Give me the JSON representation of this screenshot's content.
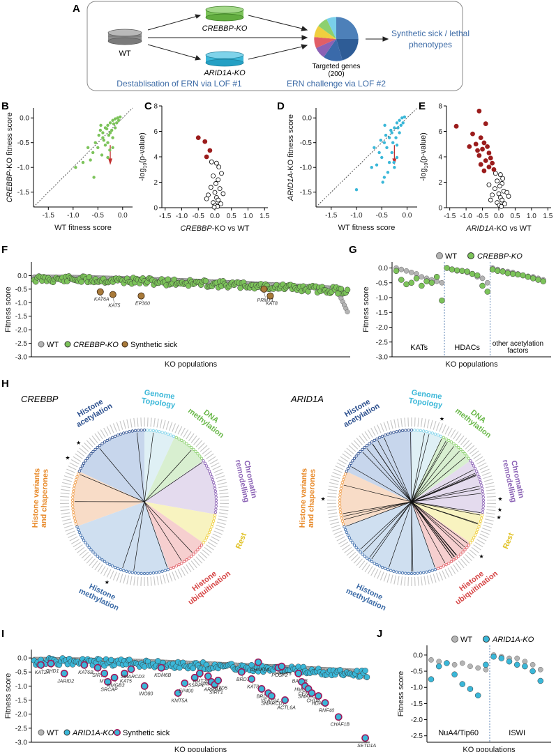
{
  "colors": {
    "crebbp_green": "#7cc35a",
    "arid1a_cyan": "#3ab7d8",
    "significant_red": "#9b1c1c",
    "wt_grey": "#b4b4b4",
    "synthetic_sick": "#a87a3a",
    "label_blue": "#3b6aa6"
  },
  "panelA": {
    "letter": "A",
    "wt": "WT",
    "crebbp_ko": "CREBBP-KO",
    "arid1a_ko": "ARID1A-KO",
    "targeted_genes": "Targeted genes",
    "targeted_count": "(200)",
    "outcome": "Synthetic sick / lethal phenotypes",
    "lof1": "Destablisation of ERN via LOF #1",
    "lof2": "ERN challenge via LOF #2"
  },
  "chart_data": [
    {
      "panel": "B",
      "type": "scatter",
      "xlabel": "WT fitness score",
      "ylabel": "CREBBP-KO fitness score",
      "xlim": [
        -1.8,
        0.2
      ],
      "ylim": [
        -1.8,
        0.2
      ],
      "xticks": [
        "-1.5",
        "-1.0",
        "-0.5",
        "0.0"
      ],
      "yticks": [
        "0.0",
        "-0.5",
        "-1.0",
        "-1.5"
      ],
      "points": [
        [
          -0.25,
          -0.1
        ],
        [
          -0.2,
          -0.05
        ],
        [
          -0.3,
          -0.15
        ],
        [
          -0.15,
          -0.02
        ],
        [
          -0.35,
          -0.2
        ],
        [
          -0.4,
          -0.3
        ],
        [
          -0.45,
          -0.25
        ],
        [
          -0.1,
          0.0
        ],
        [
          -0.05,
          0.02
        ],
        [
          -0.25,
          -0.3
        ],
        [
          -0.3,
          -0.5
        ],
        [
          -0.5,
          -0.6
        ],
        [
          -0.6,
          -0.7
        ],
        [
          -0.3,
          -0.8
        ],
        [
          -0.2,
          -0.4
        ],
        [
          -0.35,
          -0.55
        ],
        [
          -0.42,
          -0.75
        ],
        [
          -0.55,
          -0.5
        ],
        [
          -0.15,
          -0.2
        ],
        [
          -0.22,
          -0.25
        ],
        [
          -0.28,
          -0.35
        ],
        [
          -0.95,
          -1.0
        ],
        [
          -0.8,
          -0.9
        ],
        [
          -0.65,
          -0.85
        ],
        [
          -0.4,
          -0.4
        ],
        [
          -0.12,
          -0.1
        ],
        [
          -0.18,
          -0.12
        ],
        [
          -0.32,
          -0.22
        ],
        [
          -0.38,
          -0.45
        ],
        [
          -0.48,
          -0.35
        ],
        [
          -0.58,
          -1.2
        ],
        [
          -0.2,
          -0.6
        ],
        [
          -0.26,
          -0.65
        ],
        [
          -0.7,
          -0.6
        ],
        [
          -0.08,
          -0.05
        ],
        [
          -0.44,
          -0.15
        ]
      ]
    },
    {
      "panel": "C",
      "type": "scatter",
      "xlabel": "CREBBP-KO vs WT",
      "ylabel": "-log10(p-value)",
      "xlim": [
        -1.6,
        1.6
      ],
      "ylim": [
        0,
        8
      ],
      "xticks": [
        "-1.5",
        "-1.0",
        "-0.5",
        "0.0",
        "0.5",
        "1.0",
        "1.5"
      ],
      "yticks": [
        "0",
        "2",
        "4",
        "6",
        "8"
      ],
      "significant": [
        [
          -0.5,
          5.5
        ],
        [
          -0.3,
          5.2
        ],
        [
          -0.15,
          4.5
        ],
        [
          -0.25,
          4.0
        ]
      ],
      "nonsignificant": [
        [
          -0.1,
          3.6
        ],
        [
          0.05,
          3.5
        ],
        [
          0.12,
          3.2
        ],
        [
          0.2,
          2.7
        ],
        [
          -0.05,
          2.5
        ],
        [
          0.1,
          2.2
        ],
        [
          0.03,
          1.9
        ],
        [
          -0.12,
          1.6
        ],
        [
          0.15,
          1.5
        ],
        [
          0.0,
          1.2
        ],
        [
          -0.2,
          1.0
        ],
        [
          0.05,
          0.8
        ],
        [
          0.1,
          0.6
        ],
        [
          -0.05,
          0.4
        ],
        [
          0.02,
          0.2
        ],
        [
          0.08,
          0.1
        ],
        [
          -0.02,
          0.05
        ],
        [
          0.25,
          1.1
        ],
        [
          -0.25,
          0.7
        ],
        [
          0.18,
          0.3
        ]
      ]
    },
    {
      "panel": "D",
      "type": "scatter",
      "xlabel": "WT fitness score",
      "ylabel": "ARID1A-KO fitness score",
      "xlim": [
        -1.8,
        0.2
      ],
      "ylim": [
        -1.8,
        0.2
      ],
      "xticks": [
        "-1.5",
        "-1.0",
        "-0.5",
        "0.0"
      ],
      "yticks": [
        "0.0",
        "-0.5",
        "-1.0",
        "-1.5"
      ],
      "points": [
        [
          -0.2,
          -0.1
        ],
        [
          -0.25,
          -0.2
        ],
        [
          -0.3,
          -0.3
        ],
        [
          -0.15,
          -0.05
        ],
        [
          -0.35,
          -0.4
        ],
        [
          -0.4,
          -0.6
        ],
        [
          -0.45,
          -0.5
        ],
        [
          -0.1,
          0.0
        ],
        [
          -0.05,
          0.02
        ],
        [
          -0.3,
          -0.7
        ],
        [
          -0.35,
          -0.9
        ],
        [
          -0.5,
          -0.8
        ],
        [
          -0.6,
          -0.95
        ],
        [
          -0.25,
          -1.0
        ],
        [
          -0.2,
          -0.55
        ],
        [
          -0.38,
          -1.1
        ],
        [
          -0.45,
          -1.2
        ],
        [
          -0.55,
          -0.7
        ],
        [
          -0.15,
          -0.3
        ],
        [
          -0.22,
          -0.4
        ],
        [
          -0.28,
          -0.5
        ],
        [
          -1.0,
          -1.45
        ],
        [
          -0.7,
          -1.0
        ],
        [
          -0.65,
          -0.6
        ],
        [
          -0.42,
          -0.35
        ],
        [
          -0.12,
          -0.15
        ],
        [
          -0.18,
          -0.2
        ],
        [
          -0.32,
          -0.25
        ],
        [
          -0.48,
          -1.3
        ],
        [
          -0.52,
          -0.45
        ],
        [
          -0.2,
          -0.8
        ],
        [
          -0.26,
          -0.9
        ],
        [
          -0.08,
          -0.1
        ],
        [
          -0.44,
          -0.15
        ]
      ]
    },
    {
      "panel": "E",
      "type": "scatter",
      "xlabel": "ARID1A-KO vs WT",
      "ylabel": "-log10(p-value)",
      "xlim": [
        -1.6,
        1.6
      ],
      "ylim": [
        0,
        8
      ],
      "xticks": [
        "-1.5",
        "-1.0",
        "-0.5",
        "0.0",
        "0.5",
        "1.0",
        "1.5"
      ],
      "yticks": [
        "0",
        "2",
        "4",
        "6",
        "8"
      ],
      "significant": [
        [
          -1.3,
          6.4
        ],
        [
          -0.6,
          7.6
        ],
        [
          -0.4,
          6.6
        ],
        [
          -0.8,
          5.8
        ],
        [
          -0.55,
          5.5
        ],
        [
          -0.45,
          5.1
        ],
        [
          -0.7,
          5.0
        ],
        [
          -0.35,
          4.8
        ],
        [
          -0.5,
          4.6
        ],
        [
          -0.3,
          4.3
        ],
        [
          -0.6,
          4.1
        ],
        [
          -0.25,
          3.9
        ],
        [
          -0.4,
          3.7
        ],
        [
          -0.2,
          3.5
        ],
        [
          -0.55,
          3.4
        ],
        [
          -0.3,
          3.2
        ],
        [
          -0.15,
          3.0
        ],
        [
          -0.45,
          2.9
        ],
        [
          -0.65,
          4.5
        ],
        [
          -0.9,
          4.8
        ]
      ],
      "nonsignificant": [
        [
          -0.1,
          2.7
        ],
        [
          0.05,
          2.6
        ],
        [
          0.12,
          2.3
        ],
        [
          -0.05,
          2.1
        ],
        [
          0.1,
          1.9
        ],
        [
          0.03,
          1.7
        ],
        [
          -0.12,
          1.5
        ],
        [
          0.15,
          1.3
        ],
        [
          0.0,
          1.1
        ],
        [
          -0.2,
          1.0
        ],
        [
          0.05,
          0.8
        ],
        [
          0.1,
          0.6
        ],
        [
          -0.05,
          0.4
        ],
        [
          0.02,
          0.2
        ],
        [
          0.08,
          0.1
        ],
        [
          0.25,
          1.2
        ],
        [
          -0.25,
          0.6
        ],
        [
          0.18,
          0.3
        ],
        [
          0.3,
          0.9
        ],
        [
          -0.3,
          1.8
        ]
      ]
    },
    {
      "panel": "F",
      "type": "scatter",
      "xlabel": "KO populations",
      "ylabel": "Fitness score",
      "ylim": [
        -3.0,
        0.5
      ],
      "yticks": [
        "0.0",
        "-0.5",
        "-1.0",
        "-1.5",
        "-2.0",
        "-2.5",
        "-3.0"
      ],
      "legend": [
        "WT",
        "CREBBP-KO",
        "Synthetic sick"
      ],
      "n_points": 200,
      "synthetic_sick": [
        {
          "label": "KAT6A",
          "index": 42,
          "value": -0.6
        },
        {
          "label": "KAT5",
          "index": 50,
          "value": -0.7
        },
        {
          "label": "EP300",
          "index": 68,
          "value": -0.75
        },
        {
          "label": "PRMT1",
          "index": 146,
          "value": -0.5
        },
        {
          "label": "KAT8",
          "index": 150,
          "value": -0.75
        }
      ]
    },
    {
      "panel": "G",
      "type": "scatter",
      "xlabel": "KO populations",
      "ylabel": "Fitness score",
      "ylim": [
        -3.0,
        0.2
      ],
      "yticks": [
        "0.0",
        "-0.5",
        "-1.0",
        "-1.5",
        "-2.0",
        "-2.5",
        "-3.0"
      ],
      "legend": [
        "WT",
        "CREBBP-KO"
      ],
      "groups": [
        "KATs",
        "HDACs",
        "other acetylation factors"
      ],
      "series": [
        {
          "name": "WT",
          "values": [
            0.0,
            -0.05,
            -0.1,
            -0.15,
            -0.2,
            -0.3,
            -0.35,
            -0.4,
            -0.45,
            -0.5,
            0.0,
            -0.05,
            -0.1,
            -0.1,
            -0.15,
            -0.2,
            -0.3,
            -0.35,
            -0.5,
            0.0,
            -0.05,
            -0.1,
            -0.12,
            -0.15,
            -0.2,
            -0.25,
            -0.28,
            -0.3,
            -0.35,
            -0.4
          ]
        },
        {
          "name": "CREBBP-KO",
          "values": [
            -0.1,
            -0.4,
            -0.55,
            -0.5,
            -0.35,
            -0.6,
            -0.45,
            -0.5,
            -0.3,
            -1.1,
            0.0,
            -0.05,
            -0.08,
            -0.1,
            -0.12,
            -0.2,
            -0.25,
            -0.6,
            -0.8,
            -0.05,
            -0.1,
            -0.12,
            -0.18,
            -0.2,
            -0.22,
            -0.25,
            -0.3,
            -0.35,
            -0.4,
            -0.45
          ]
        }
      ]
    },
    {
      "panel": "I",
      "type": "scatter",
      "xlabel": "KO populations",
      "ylabel": "Fitness score",
      "ylim": [
        -3.0,
        0.3
      ],
      "yticks": [
        "0.0",
        "-0.5",
        "-1.0",
        "-1.5",
        "-2.0",
        "-2.5",
        "-3.0"
      ],
      "legend": [
        "WT",
        "ARID1A-KO",
        "Synthetic sick"
      ],
      "n_points": 200,
      "synthetic_sick": [
        {
          "label": "KAT2A",
          "index": 4,
          "value": -0.25
        },
        {
          "label": "CHD1",
          "index": 10,
          "value": -0.2
        },
        {
          "label": "JARID2",
          "index": 18,
          "value": -0.55
        },
        {
          "label": "KAT6B",
          "index": 30,
          "value": -0.25
        },
        {
          "label": "SIRT7",
          "index": 38,
          "value": -0.35
        },
        {
          "label": "MTA1",
          "index": 42,
          "value": -0.55
        },
        {
          "label": "SRCAP",
          "index": 44,
          "value": -0.85
        },
        {
          "label": "HMGB3",
          "index": 48,
          "value": -0.7
        },
        {
          "label": "KAT5",
          "index": 54,
          "value": -0.55
        },
        {
          "label": "SMARCD3",
          "index": 58,
          "value": -0.4
        },
        {
          "label": "INO80",
          "index": 66,
          "value": -1.0
        },
        {
          "label": "KDM6B",
          "index": 76,
          "value": -0.35
        },
        {
          "label": "KMT5A",
          "index": 86,
          "value": -1.25
        },
        {
          "label": "EP400",
          "index": 90,
          "value": -0.9
        },
        {
          "label": "SSRP1",
          "index": 96,
          "value": -0.7
        },
        {
          "label": "KMT2E",
          "index": 99,
          "value": -0.55
        },
        {
          "label": "DMAP1",
          "index": 104,
          "value": -0.65
        },
        {
          "label": "ARID1B",
          "index": 106,
          "value": -0.85
        },
        {
          "label": "SIRT1",
          "index": 108,
          "value": -0.95
        },
        {
          "label": "SETD5",
          "index": 110,
          "value": -0.8
        },
        {
          "label": "BRD7",
          "index": 124,
          "value": -0.5
        },
        {
          "label": "KAT8",
          "index": 130,
          "value": -0.75
        },
        {
          "label": "CHAF1A",
          "index": 134,
          "value": -0.15
        },
        {
          "label": "BRD4",
          "index": 136,
          "value": -1.1
        },
        {
          "label": "YEATS4",
          "index": 140,
          "value": -1.25
        },
        {
          "label": "SMARCD1",
          "index": 142,
          "value": -1.35
        },
        {
          "label": "PCGF2",
          "index": 146,
          "value": -0.35
        },
        {
          "label": "PRMT5",
          "index": 148,
          "value": -0.3
        },
        {
          "label": "ACTL6A",
          "index": 150,
          "value": -1.5
        },
        {
          "label": "BAZ1B",
          "index": 158,
          "value": -0.55
        },
        {
          "label": "HMGB1",
          "index": 160,
          "value": -0.85
        },
        {
          "label": "CENPA",
          "index": 162,
          "value": -1.0
        },
        {
          "label": "SMARCB1",
          "index": 164,
          "value": -1.1
        },
        {
          "label": "CHD4",
          "index": 166,
          "value": -1.25
        },
        {
          "label": "HDAC3",
          "index": 170,
          "value": -1.35
        },
        {
          "label": "RNF40",
          "index": 174,
          "value": -1.6
        },
        {
          "label": "CHAF1B",
          "index": 182,
          "value": -2.1
        },
        {
          "label": "SETD1A",
          "index": 198,
          "value": -2.85
        }
      ]
    },
    {
      "panel": "J",
      "type": "scatter",
      "xlabel": "KO populations",
      "ylabel": "Fitness score",
      "ylim": [
        -2.7,
        0.3
      ],
      "yticks": [
        "0.0",
        "-0.5",
        "-1.0",
        "-1.5",
        "-2.0",
        "-2.5"
      ],
      "legend": [
        "WT",
        "ARID1A-KO"
      ],
      "groups": [
        "NuA4/Tip60",
        "ISWI"
      ],
      "series": [
        {
          "name": "WT",
          "values": [
            -0.15,
            -0.2,
            -0.25,
            -0.3,
            -0.25,
            -0.35,
            -0.4,
            -0.45,
            0.0,
            -0.05,
            -0.1,
            -0.1,
            -0.2,
            -0.3,
            -0.45
          ]
        },
        {
          "name": "ARID1A-KO",
          "values": [
            -0.75,
            -0.35,
            -0.25,
            -0.6,
            -0.9,
            -1.05,
            -1.25,
            -0.3,
            -0.05,
            -0.1,
            -0.2,
            -0.3,
            -0.35,
            -0.5,
            -0.8
          ]
        }
      ]
    }
  ],
  "panelF": {
    "letter": "F",
    "legend_wt": "WT",
    "legend_ko": "CREBBP-KO",
    "legend_sick": "Synthetic sick"
  },
  "panelG": {
    "letter": "G",
    "legend_wt": "WT",
    "legend_ko": "CREBBP-KO",
    "group1": "KATs",
    "group2": "HDACs",
    "group3a": "other acetylation",
    "group3b": "factors"
  },
  "panelH": {
    "letter": "H",
    "left_title": "CREBBP",
    "right_title": "ARID1A",
    "sectors": [
      "Genome Topology",
      "DNA methylation",
      "Chromatin remodelling",
      "Rest",
      "Histone ubiquitination",
      "Histone methylation",
      "Histone variants and chaperones",
      "Histone acetylation"
    ]
  },
  "panelI": {
    "letter": "I",
    "legend_wt": "WT",
    "legend_ko": "ARID1A-KO",
    "legend_sick": "Synthetic sick"
  },
  "panelJ": {
    "letter": "J",
    "legend_wt": "WT",
    "legend_ko": "ARID1A-KO",
    "group1": "NuA4/Tip60",
    "group2": "ISWI"
  },
  "panel_letters": {
    "B": "B",
    "C": "C",
    "D": "D",
    "E": "E"
  }
}
